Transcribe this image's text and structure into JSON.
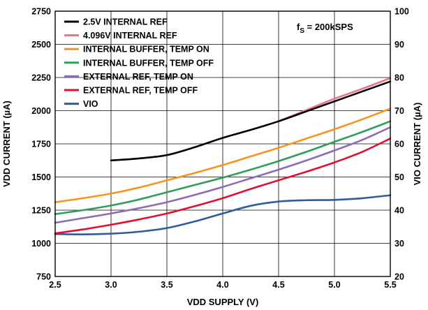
{
  "chart_data": {
    "type": "line",
    "xlabel": "VDD SUPPLY (V)",
    "ylabel": "VDD CURRENT (µA)",
    "y2label": "VIO CURRENT (µA)",
    "annotation": {
      "prefix": "f",
      "subscript": "S",
      "suffix": " = 200kSPS"
    },
    "xlim": [
      2.5,
      5.5
    ],
    "ylim": [
      750,
      2750
    ],
    "y2lim": [
      20,
      100
    ],
    "x_ticks": [
      2.5,
      3.0,
      3.5,
      4.0,
      4.5,
      5.0,
      5.5
    ],
    "x_tick_labels": [
      "2.5",
      "3.0",
      "3.5",
      "4.0",
      "4.5",
      "5.0",
      "5.5"
    ],
    "y_ticks": [
      750,
      1000,
      1250,
      1500,
      1750,
      2000,
      2250,
      2500,
      2750
    ],
    "y_tick_labels": [
      "750",
      "1000",
      "1250",
      "1500",
      "1750",
      "2000",
      "2250",
      "2500",
      "2750"
    ],
    "y2_ticks": [
      20,
      30,
      40,
      50,
      60,
      70,
      80,
      90,
      100
    ],
    "y2_tick_labels": [
      "20",
      "30",
      "40",
      "50",
      "60",
      "70",
      "80",
      "90",
      "100"
    ],
    "grid": true,
    "legend_position": "top-left",
    "series": [
      {
        "name": "2.5V INTERNAL REF",
        "color": "#000000",
        "axis": "left",
        "x": [
          3.0,
          3.25,
          3.5,
          3.75,
          4.0,
          4.25,
          4.5,
          4.75,
          5.0,
          5.25,
          5.5
        ],
        "y": [
          1625,
          1640,
          1665,
          1725,
          1795,
          1855,
          1920,
          1995,
          2070,
          2145,
          2220
        ]
      },
      {
        "name": "4.096V INTERNAL REF",
        "color": "#e8748a",
        "axis": "left",
        "x": [
          4.5,
          4.75,
          5.0,
          5.25,
          5.5
        ],
        "y": [
          1920,
          2005,
          2090,
          2165,
          2245
        ]
      },
      {
        "name": "INTERNAL BUFFER, TEMP ON",
        "color": "#f7941d",
        "axis": "left",
        "x": [
          2.5,
          2.75,
          3.0,
          3.25,
          3.5,
          3.75,
          4.0,
          4.25,
          4.5,
          4.75,
          5.0,
          5.25,
          5.5
        ],
        "y": [
          1310,
          1340,
          1375,
          1420,
          1475,
          1530,
          1590,
          1655,
          1720,
          1790,
          1860,
          1935,
          2015
        ]
      },
      {
        "name": "INTERNAL BUFFER, TEMP OFF",
        "color": "#2e9e5b",
        "axis": "left",
        "x": [
          2.5,
          2.75,
          3.0,
          3.25,
          3.5,
          3.75,
          4.0,
          4.25,
          4.5,
          4.75,
          5.0,
          5.25,
          5.5
        ],
        "y": [
          1220,
          1250,
          1285,
          1330,
          1385,
          1440,
          1495,
          1555,
          1620,
          1690,
          1765,
          1840,
          1920
        ]
      },
      {
        "name": "EXTERNAL REF, TEMP ON",
        "color": "#8e6bb5",
        "axis": "left",
        "x": [
          2.5,
          2.75,
          3.0,
          3.25,
          3.5,
          3.75,
          4.0,
          4.25,
          4.5,
          4.75,
          5.0,
          5.25,
          5.5
        ],
        "y": [
          1155,
          1190,
          1225,
          1265,
          1310,
          1365,
          1425,
          1490,
          1555,
          1625,
          1700,
          1780,
          1875
        ]
      },
      {
        "name": "EXTERNAL REF, TEMP OFF",
        "color": "#e0102f",
        "axis": "left",
        "x": [
          2.5,
          2.75,
          3.0,
          3.25,
          3.5,
          3.75,
          4.0,
          4.25,
          4.5,
          4.75,
          5.0,
          5.25,
          5.5
        ],
        "y": [
          1075,
          1105,
          1140,
          1180,
          1225,
          1280,
          1340,
          1410,
          1475,
          1540,
          1610,
          1690,
          1790
        ]
      },
      {
        "name": "VIO",
        "color": "#2e5c9e",
        "axis": "right",
        "x": [
          2.5,
          2.75,
          3.0,
          3.25,
          3.5,
          3.75,
          4.0,
          4.25,
          4.5,
          4.75,
          5.0,
          5.25,
          5.5
        ],
        "y": [
          32.8,
          32.7,
          32.9,
          33.5,
          34.6,
          36.6,
          39.0,
          41.3,
          42.6,
          43.0,
          43.1,
          43.6,
          44.5
        ]
      }
    ]
  }
}
